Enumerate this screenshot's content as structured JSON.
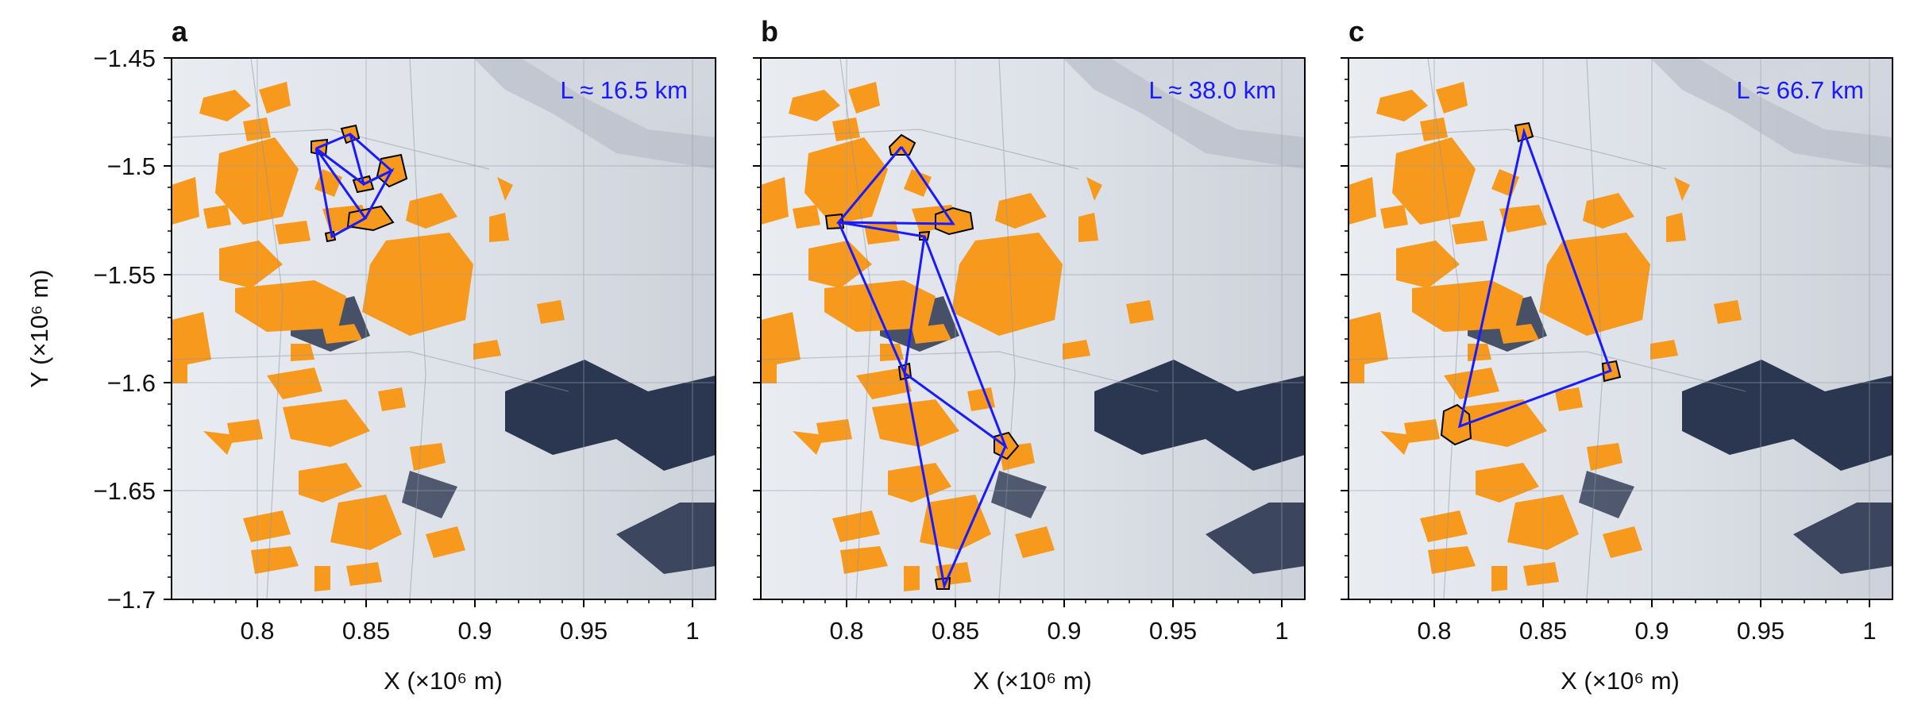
{
  "figure": {
    "y_axis_label": "Y (×10⁶ m)",
    "x_axis_label": "X (×10⁶ m)",
    "y_ticks": [
      "−1.45",
      "−1.5",
      "−1.55",
      "−1.6",
      "−1.65",
      "−1.7"
    ],
    "x_ticks": [
      "0.8",
      "0.85",
      "0.9",
      "0.95",
      "1"
    ],
    "colors": {
      "floe_fill": "#f7991c",
      "selected_outline": "#000000",
      "link_line": "#1a1aff",
      "sea_ice_background": "#dfe3ea",
      "open_water": "#2b3650"
    },
    "panels": [
      {
        "letter": "a",
        "scale_label": "L  ≈  16.5 km"
      },
      {
        "letter": "b",
        "scale_label": "L  ≈  38.0 km"
      },
      {
        "letter": "c",
        "scale_label": "L  ≈  66.7 km"
      }
    ]
  },
  "map_data": {
    "x_range": [
      0.76,
      1.01
    ],
    "y_range": [
      -1.7,
      -1.45
    ],
    "units": "×10⁶ m",
    "panels": [
      {
        "letter": "a",
        "scale_km": 16.5,
        "selected_floes": [
          [
            0.836,
            -1.488
          ],
          [
            0.823,
            -1.494
          ],
          [
            0.853,
            -1.503
          ],
          [
            0.845,
            -1.511
          ],
          [
            0.849,
            -1.524
          ],
          [
            0.832,
            -1.531
          ]
        ]
      },
      {
        "letter": "b",
        "scale_km": 38.0,
        "selected_floes": [
          [
            0.826,
            -1.493
          ],
          [
            0.797,
            -1.526
          ],
          [
            0.848,
            -1.525
          ],
          [
            0.836,
            -1.532
          ],
          [
            0.827,
            -1.597
          ],
          [
            0.871,
            -1.629
          ],
          [
            0.845,
            -1.692
          ]
        ]
      },
      {
        "letter": "c",
        "scale_km": 66.7,
        "selected_floes": [
          [
            0.842,
            -1.487
          ],
          [
            0.881,
            -1.597
          ],
          [
            0.811,
            -1.62
          ]
        ]
      }
    ]
  }
}
